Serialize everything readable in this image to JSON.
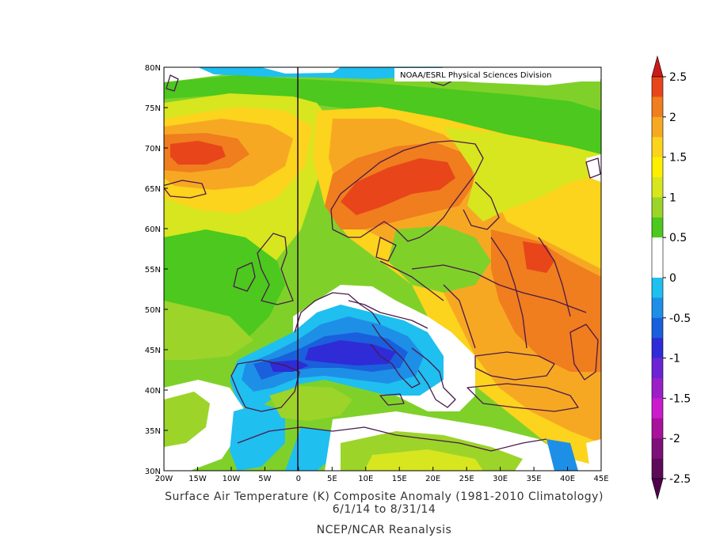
{
  "map": {
    "credit": "NOAA/ESRL Physical Sciences Division",
    "title_line1": "Surface Air Temperature (K) Composite Anomaly (1981-2010 Climatology)",
    "title_line2": "6/1/14  to 8/31/14",
    "title_line3": "NCEP/NCAR Reanalysis",
    "lon_labels": [
      "20W",
      "15W",
      "10W",
      "5W",
      "0",
      "5E",
      "10E",
      "15E",
      "20E",
      "25E",
      "30E",
      "35E",
      "40E",
      "45E"
    ],
    "lat_labels": [
      "80N",
      "75N",
      "70N",
      "65N",
      "60N",
      "55N",
      "50N",
      "45N",
      "40N",
      "35N",
      "30N"
    ],
    "lon_range": [
      -20,
      45
    ],
    "lat_range": [
      30,
      80
    ]
  },
  "colorbar": {
    "labels": [
      "2.5",
      "2",
      "1.5",
      "1",
      "0.5",
      "0",
      "-0.5",
      "-1",
      "-1.5",
      "-2",
      "-2.5"
    ],
    "colors": [
      "#e8451a",
      "#f07d1e",
      "#f7a823",
      "#fcd31d",
      "#ffee00",
      "#d7e61f",
      "#9cd42a",
      "#4cc81e",
      "#ffffff",
      "#ffffff",
      "#1fbff0",
      "#1e8fe6",
      "#1a5fdc",
      "#2f2bd6",
      "#6a24d4",
      "#9a1fc8",
      "#cc1bcc",
      "#a8119c",
      "#7d0f78",
      "#5e0a5a"
    ],
    "top_color": "#cc1a1a",
    "bottom_color": "#50004d"
  }
}
